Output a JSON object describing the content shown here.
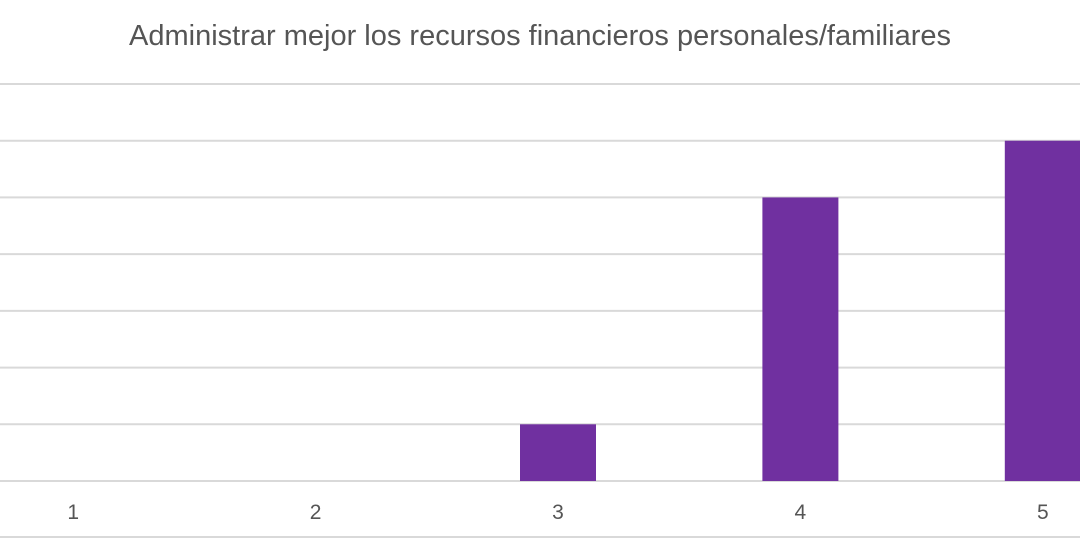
{
  "chart_data": {
    "type": "bar",
    "title": "Administrar mejor los recursos financieros personales/familiares",
    "categories": [
      "1",
      "2",
      "3",
      "4",
      "5"
    ],
    "values": [
      0,
      0,
      1,
      5,
      6
    ],
    "xlabel": "",
    "ylabel": "",
    "ylim": [
      0,
      7
    ],
    "grid": true,
    "legend": "none",
    "bar_color": "#7030A0",
    "grid_color": "#d9d9d9",
    "text_color": "#555555"
  }
}
